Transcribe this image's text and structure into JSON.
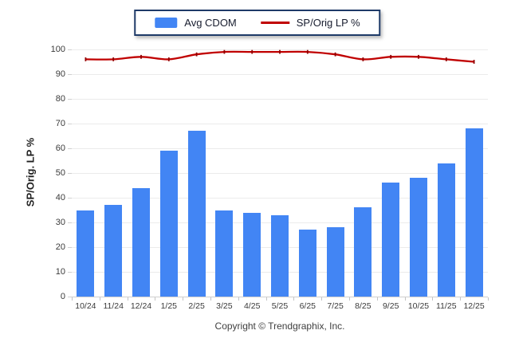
{
  "legend": {
    "items": [
      {
        "label": "Avg CDOM",
        "swatch": "bar",
        "color": "#4285f4"
      },
      {
        "label": "SP/Orig LP %",
        "swatch": "line",
        "color": "#c00000"
      }
    ],
    "border_color": "#1e3a68"
  },
  "footer": {
    "copyright": "Copyright © Trendgraphix, Inc."
  },
  "palette": {
    "bar": "#4285f4",
    "line": "#c00000",
    "marker": "#8f0000",
    "grid": "#ebebeb",
    "axis": "#cfcfcf",
    "tick_label": "#3a3a3a"
  },
  "chart_data": {
    "type": "bar",
    "subtype": "bar+line combo",
    "categories": [
      "10/24",
      "11/24",
      "12/24",
      "1/25",
      "2/25",
      "3/25",
      "4/25",
      "5/25",
      "6/25",
      "7/25",
      "8/25",
      "9/25",
      "10/25",
      "11/25",
      "12/25"
    ],
    "series": [
      {
        "name": "Avg CDOM",
        "type": "bar",
        "color": "#4285f4",
        "values": [
          35,
          37,
          44,
          59,
          67,
          35,
          34,
          33,
          27,
          28,
          36,
          46,
          48,
          54,
          68
        ]
      },
      {
        "name": "SP/Orig LP %",
        "type": "line",
        "color": "#c00000",
        "values": [
          96,
          96,
          97,
          96,
          98,
          99,
          99,
          99,
          99,
          98,
          96,
          97,
          97,
          96,
          95
        ]
      }
    ],
    "xlabel": "",
    "ylabel": "SP/Orig. LP %",
    "ylim": [
      0,
      100
    ],
    "ytick_step": 10,
    "grid": true,
    "legend_position": "top-center"
  }
}
